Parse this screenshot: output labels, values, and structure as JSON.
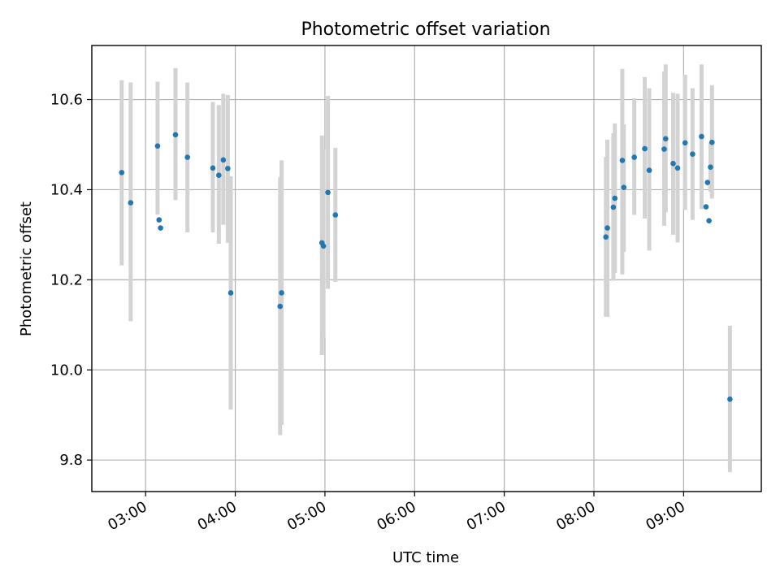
{
  "chart_data": {
    "type": "scatter",
    "title": "Photometric offset variation",
    "xlabel": "UTC time",
    "ylabel": "Photometric offset",
    "x_unit": "UTC time of day (HH:MM)",
    "xlim": [
      "02:24",
      "09:52"
    ],
    "ylim": [
      9.73,
      10.72
    ],
    "xticks": [
      "03:00",
      "04:00",
      "05:00",
      "06:00",
      "07:00",
      "08:00",
      "09:00"
    ],
    "yticks": [
      "9.8",
      "10.0",
      "10.2",
      "10.4",
      "10.6"
    ],
    "grid": true,
    "point_color": "#1f77b4",
    "errorbar_color": "#d3d3d3",
    "points": [
      {
        "x": "02:44",
        "y": 10.438,
        "ylow": 10.232,
        "yhigh": 10.643
      },
      {
        "x": "02:50",
        "y": 10.371,
        "ylow": 10.108,
        "yhigh": 10.638
      },
      {
        "x": "03:08",
        "y": 10.497,
        "ylow": 10.345,
        "yhigh": 10.64
      },
      {
        "x": "03:09",
        "y": 10.333,
        "ylow": 10.33,
        "yhigh": 10.336
      },
      {
        "x": "03:10",
        "y": 10.315,
        "ylow": 10.312,
        "yhigh": 10.318
      },
      {
        "x": "03:20",
        "y": 10.522,
        "ylow": 10.377,
        "yhigh": 10.67
      },
      {
        "x": "03:28",
        "y": 10.472,
        "ylow": 10.305,
        "yhigh": 10.638
      },
      {
        "x": "03:45",
        "y": 10.448,
        "ylow": 10.305,
        "yhigh": 10.595
      },
      {
        "x": "03:49",
        "y": 10.432,
        "ylow": 10.28,
        "yhigh": 10.588
      },
      {
        "x": "03:52",
        "y": 10.466,
        "ylow": 10.322,
        "yhigh": 10.613
      },
      {
        "x": "03:55",
        "y": 10.447,
        "ylow": 10.282,
        "yhigh": 10.61
      },
      {
        "x": "03:57",
        "y": 10.171,
        "ylow": 9.912,
        "yhigh": 10.43
      },
      {
        "x": "04:30",
        "y": 10.141,
        "ylow": 9.855,
        "yhigh": 10.428
      },
      {
        "x": "04:31",
        "y": 10.171,
        "ylow": 9.878,
        "yhigh": 10.465
      },
      {
        "x": "04:58",
        "y": 10.282,
        "ylow": 10.033,
        "yhigh": 10.52
      },
      {
        "x": "04:59",
        "y": 10.275,
        "ylow": 10.072,
        "yhigh": 10.49
      },
      {
        "x": "05:02",
        "y": 10.394,
        "ylow": 10.18,
        "yhigh": 10.608
      },
      {
        "x": "05:07",
        "y": 10.344,
        "ylow": 10.195,
        "yhigh": 10.493
      },
      {
        "x": "08:08",
        "y": 10.295,
        "ylow": 10.118,
        "yhigh": 10.473
      },
      {
        "x": "08:09",
        "y": 10.315,
        "ylow": 10.118,
        "yhigh": 10.511
      },
      {
        "x": "08:13",
        "y": 10.361,
        "ylow": 10.198,
        "yhigh": 10.525
      },
      {
        "x": "08:14",
        "y": 10.381,
        "ylow": 10.215,
        "yhigh": 10.547
      },
      {
        "x": "08:20",
        "y": 10.405,
        "ylow": 10.262,
        "yhigh": 10.545
      },
      {
        "x": "08:19",
        "y": 10.465,
        "ylow": 10.212,
        "yhigh": 10.668
      },
      {
        "x": "08:27",
        "y": 10.472,
        "ylow": 10.344,
        "yhigh": 10.603
      },
      {
        "x": "08:34",
        "y": 10.491,
        "ylow": 10.336,
        "yhigh": 10.65
      },
      {
        "x": "08:37",
        "y": 10.443,
        "ylow": 10.265,
        "yhigh": 10.625
      },
      {
        "x": "08:47",
        "y": 10.49,
        "ylow": 10.32,
        "yhigh": 10.662
      },
      {
        "x": "08:48",
        "y": 10.513,
        "ylow": 10.35,
        "yhigh": 10.678
      },
      {
        "x": "08:53",
        "y": 10.458,
        "ylow": 10.3,
        "yhigh": 10.615
      },
      {
        "x": "08:56",
        "y": 10.448,
        "ylow": 10.283,
        "yhigh": 10.613
      },
      {
        "x": "09:01",
        "y": 10.504,
        "ylow": 10.355,
        "yhigh": 10.655
      },
      {
        "x": "09:06",
        "y": 10.479,
        "ylow": 10.333,
        "yhigh": 10.625
      },
      {
        "x": "09:12",
        "y": 10.518,
        "ylow": 10.357,
        "yhigh": 10.678
      },
      {
        "x": "09:15",
        "y": 10.362,
        "ylow": 10.359,
        "yhigh": 10.365
      },
      {
        "x": "09:16",
        "y": 10.416,
        "ylow": 10.413,
        "yhigh": 10.419
      },
      {
        "x": "09:17",
        "y": 10.331,
        "ylow": 10.328,
        "yhigh": 10.334
      },
      {
        "x": "09:18",
        "y": 10.45,
        "ylow": 10.395,
        "yhigh": 10.505
      },
      {
        "x": "09:19",
        "y": 10.505,
        "ylow": 10.38,
        "yhigh": 10.632
      },
      {
        "x": "09:31",
        "y": 9.935,
        "ylow": 9.773,
        "yhigh": 10.098
      }
    ]
  }
}
